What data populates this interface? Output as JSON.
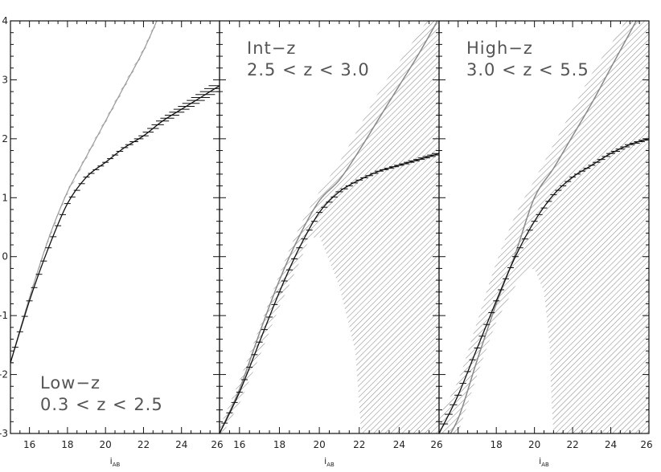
{
  "chart_data": [
    {
      "type": "area",
      "panel_label": [
        "Low−z",
        "0.3 < z < 2.5"
      ],
      "xlabel": "i_AB",
      "ylabel": "",
      "xlim": [
        15,
        26
      ],
      "ylim": [
        -3,
        4
      ],
      "x_ticks": [
        16,
        18,
        20,
        22,
        24,
        26
      ],
      "y_ticks": [
        4,
        3,
        2,
        1,
        0,
        -1,
        -2,
        -3
      ],
      "series": [
        {
          "style": "hatched band (upper curve)",
          "x": [
            15,
            16,
            17,
            18,
            19,
            20,
            21,
            22,
            22.7
          ],
          "y": [
            -1.8,
            -0.7,
            0.3,
            1.1,
            1.7,
            2.3,
            2.9,
            3.5,
            4.0
          ]
        },
        {
          "style": "line with error bars",
          "x": [
            15,
            16,
            17,
            18,
            19,
            20,
            21,
            22,
            23,
            24,
            25,
            26
          ],
          "y": [
            -1.8,
            -0.75,
            0.15,
            0.9,
            1.35,
            1.6,
            1.85,
            2.05,
            2.3,
            2.5,
            2.7,
            2.9
          ],
          "err": [
            0.03,
            0.03,
            0.03,
            0.03,
            0.03,
            0.04,
            0.05,
            0.07,
            0.09,
            0.11,
            0.13,
            0.15
          ]
        }
      ]
    },
    {
      "type": "area",
      "panel_label": [
        "Int−z",
        "2.5 < z < 3.0"
      ],
      "xlabel": "i_AB",
      "ylabel": "",
      "xlim": [
        15,
        26
      ],
      "ylim": [
        -3,
        4
      ],
      "x_ticks": [
        16,
        18,
        20,
        22,
        24,
        26
      ],
      "y_ticks": [
        4,
        3,
        2,
        1,
        0,
        -1,
        -2,
        -3
      ],
      "series": [
        {
          "style": "line",
          "x": [
            15,
            16,
            17,
            18,
            19,
            20,
            21,
            22,
            23,
            24,
            25,
            26
          ],
          "y": [
            -3.0,
            -2.25,
            -1.3,
            -0.4,
            0.35,
            0.95,
            1.3,
            1.8,
            2.35,
            2.9,
            3.45,
            4.05
          ]
        },
        {
          "style": "line with error bars",
          "x": [
            15,
            16,
            17,
            18,
            19,
            20,
            21,
            22,
            23,
            24,
            25,
            26
          ],
          "y": [
            -3.0,
            -2.3,
            -1.45,
            -0.6,
            0.15,
            0.75,
            1.1,
            1.3,
            1.45,
            1.55,
            1.65,
            1.75
          ],
          "err": [
            0.03,
            0.03,
            0.03,
            0.03,
            0.03,
            0.04,
            0.05,
            0.05,
            0.06,
            0.07,
            0.08,
            0.1
          ]
        },
        {
          "style": "hatched band upper edge",
          "x": [
            15,
            16,
            17,
            18,
            19,
            20,
            21,
            22,
            23,
            24,
            25,
            26
          ],
          "y": [
            -2.9,
            -2.1,
            -1.2,
            -0.3,
            0.5,
            1.1,
            1.6,
            2.2,
            2.8,
            3.3,
            3.8,
            4.3
          ]
        },
        {
          "style": "hatched band lower edge",
          "x": [
            15,
            16,
            17,
            18,
            19,
            19.5,
            20,
            21,
            21.8,
            22,
            22.1,
            26
          ],
          "y": [
            -3.1,
            -2.5,
            -1.7,
            -0.85,
            -0.1,
            0.3,
            0.35,
            -0.5,
            -1.6,
            -2.5,
            -3.0,
            -3.0
          ]
        }
      ]
    },
    {
      "type": "area",
      "panel_label": [
        "High−z",
        "3.0 < z < 5.5"
      ],
      "xlabel": "i_AB",
      "ylabel": "",
      "xlim": [
        15,
        26
      ],
      "ylim": [
        -3,
        4
      ],
      "x_ticks": [
        18,
        20,
        22,
        24,
        26
      ],
      "y_ticks": [
        4,
        3,
        2,
        1,
        0,
        -1,
        -2,
        -3
      ],
      "series": [
        {
          "style": "line",
          "x": [
            15,
            16,
            17,
            18,
            19,
            20,
            21,
            22,
            23,
            24,
            25,
            26
          ],
          "y": [
            -3.3,
            -2.75,
            -1.75,
            -0.8,
            0.05,
            1.0,
            1.5,
            2.05,
            2.6,
            3.2,
            3.8,
            4.4
          ]
        },
        {
          "style": "line with error bars",
          "x": [
            15,
            16,
            17,
            18,
            19,
            20,
            21,
            22,
            23,
            24,
            25,
            26
          ],
          "y": [
            -3.0,
            -2.35,
            -1.55,
            -0.75,
            0.0,
            0.6,
            1.05,
            1.35,
            1.55,
            1.75,
            1.9,
            2.0
          ],
          "err": [
            0.06,
            0.05,
            0.04,
            0.03,
            0.03,
            0.03,
            0.04,
            0.04,
            0.05,
            0.06,
            0.07,
            0.08
          ]
        },
        {
          "style": "hatched band upper edge",
          "x": [
            15,
            16,
            17,
            18,
            19,
            20,
            21,
            22,
            23,
            24,
            25,
            26
          ],
          "y": [
            -2.7,
            -2.1,
            -1.1,
            -0.1,
            0.7,
            1.3,
            1.9,
            2.5,
            3.1,
            3.6,
            4.1,
            4.5
          ]
        },
        {
          "style": "hatched band lower edge",
          "x": [
            15,
            16,
            17,
            18,
            19,
            19.5,
            20,
            20.5,
            20.8,
            20.9,
            21,
            26
          ],
          "y": [
            -3.2,
            -3.0,
            -2.0,
            -1.1,
            -0.5,
            -0.25,
            -0.2,
            -0.6,
            -1.5,
            -2.5,
            -3.0,
            -3.0
          ]
        }
      ]
    }
  ]
}
